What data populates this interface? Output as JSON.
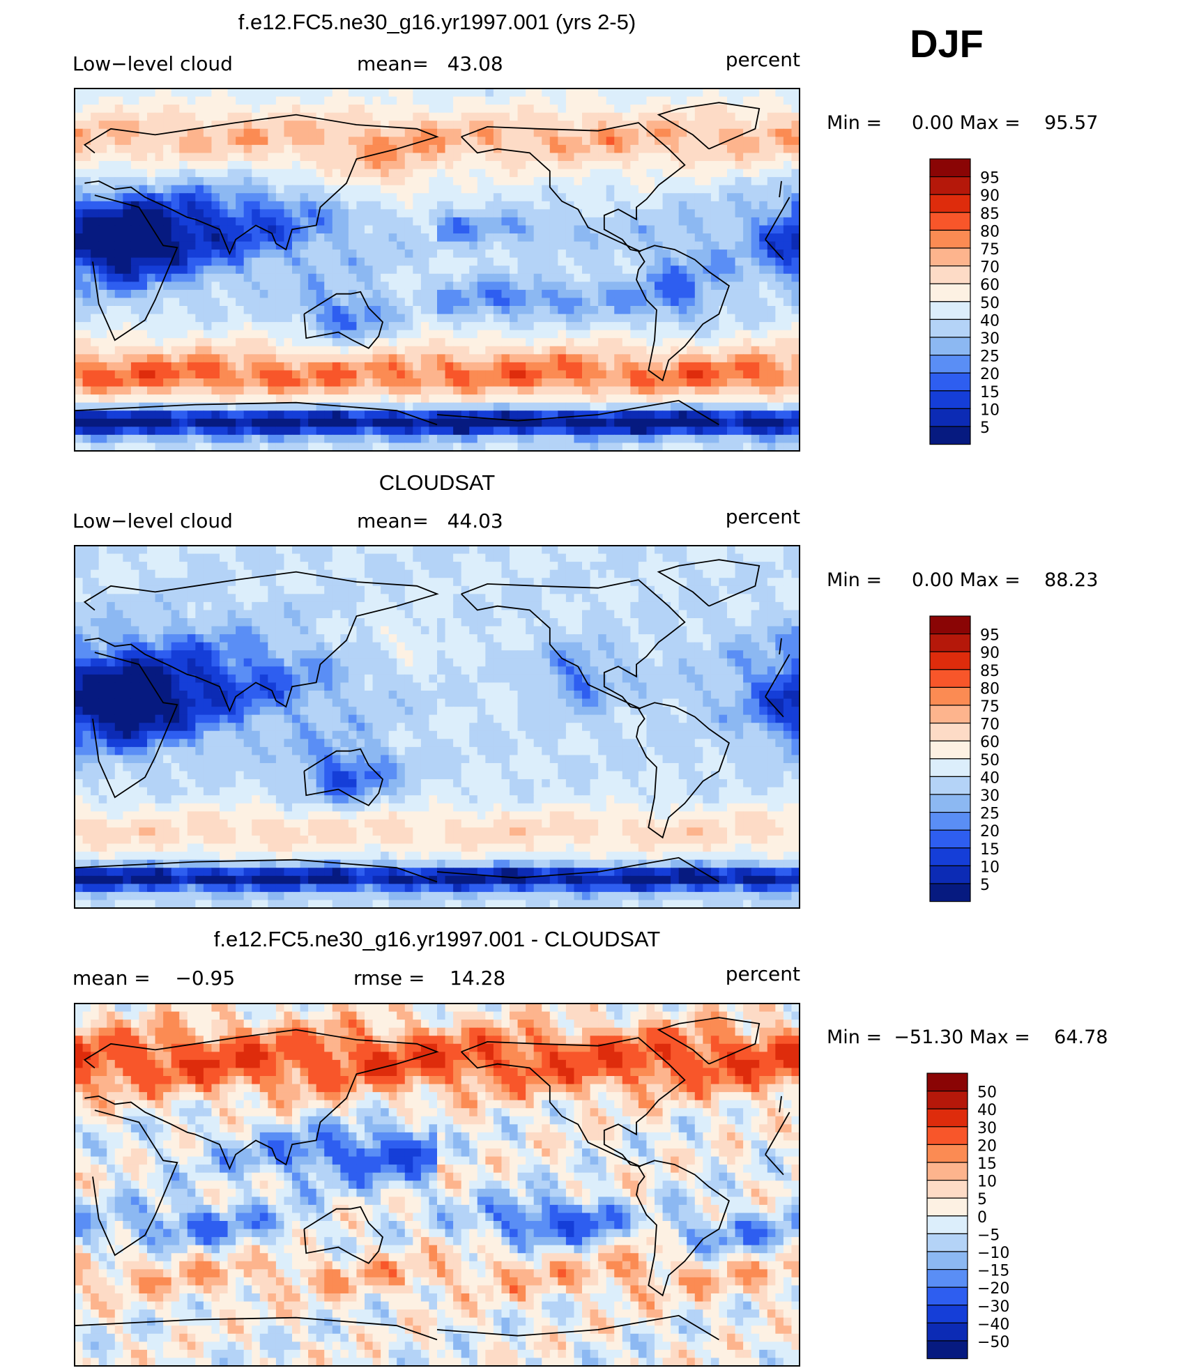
{
  "season": "DJF",
  "chart_data": [
    {
      "type": "heatmap",
      "title": "f.e12.FC5.ne30_g16.yr1997.001 (yrs 2-5)",
      "left_label": "Low−level cloud",
      "center_label": "mean=   43.08",
      "units": "percent",
      "variable": "Low-level cloud",
      "mean": 43.08,
      "minmax_text": "Min =     0.00 Max =    95.57",
      "min": 0.0,
      "max": 95.57,
      "colorbar": {
        "labels": [
          "95",
          "90",
          "85",
          "80",
          "75",
          "70",
          "60",
          "50",
          "40",
          "30",
          "25",
          "20",
          "15",
          "10",
          "5"
        ],
        "levels": [
          95,
          90,
          85,
          80,
          75,
          70,
          60,
          50,
          40,
          30,
          25,
          20,
          15,
          10,
          5
        ],
        "colors": [
          "#8a0505",
          "#b5180a",
          "#de2c0c",
          "#f8562a",
          "#fb8b53",
          "#fdb48d",
          "#fddbc6",
          "#fdf1e3",
          "#dceefb",
          "#b4d3f7",
          "#8cb8f2",
          "#5a8ef5",
          "#2e5ef0",
          "#153ed8",
          "#0c2bb5",
          "#061a80"
        ]
      },
      "field": "model_low_cloud"
    },
    {
      "type": "heatmap",
      "title": "CLOUDSAT",
      "left_label": "Low−level cloud",
      "center_label": "mean=   44.03",
      "units": "percent",
      "variable": "Low-level cloud",
      "mean": 44.03,
      "minmax_text": "Min =     0.00 Max =    88.23",
      "min": 0.0,
      "max": 88.23,
      "colorbar": {
        "labels": [
          "95",
          "90",
          "85",
          "80",
          "75",
          "70",
          "60",
          "50",
          "40",
          "30",
          "25",
          "20",
          "15",
          "10",
          "5"
        ],
        "levels": [
          95,
          90,
          85,
          80,
          75,
          70,
          60,
          50,
          40,
          30,
          25,
          20,
          15,
          10,
          5
        ],
        "colors": [
          "#8a0505",
          "#b5180a",
          "#de2c0c",
          "#f8562a",
          "#fb8b53",
          "#fdb48d",
          "#fddbc6",
          "#fdf1e3",
          "#dceefb",
          "#b4d3f7",
          "#8cb8f2",
          "#5a8ef5",
          "#2e5ef0",
          "#153ed8",
          "#0c2bb5",
          "#061a80"
        ]
      },
      "field": "obs_low_cloud"
    },
    {
      "type": "heatmap",
      "title": "f.e12.FC5.ne30_g16.yr1997.001 - CLOUDSAT",
      "left_label": "mean =    −0.95",
      "center_label": "rmse =    14.28",
      "units": "percent",
      "mean": -0.95,
      "rmse": 14.28,
      "minmax_text": "Min =  −51.30 Max =    64.78",
      "min": -51.3,
      "max": 64.78,
      "colorbar": {
        "labels": [
          "50",
          "40",
          "30",
          "20",
          "15",
          "10",
          "5",
          "0",
          "−5",
          "−10",
          "−15",
          "−20",
          "−30",
          "−40",
          "−50"
        ],
        "levels": [
          50,
          40,
          30,
          20,
          15,
          10,
          5,
          0,
          -5,
          -10,
          -15,
          -20,
          -30,
          -40,
          -50
        ],
        "colors": [
          "#8a0505",
          "#b5180a",
          "#de2c0c",
          "#f8562a",
          "#fb8b53",
          "#fdb48d",
          "#fddbc6",
          "#fdf1e3",
          "#dceefb",
          "#b4d3f7",
          "#8cb8f2",
          "#5a8ef5",
          "#2e5ef0",
          "#153ed8",
          "#0c2bb5",
          "#061a80"
        ]
      },
      "field": "difference"
    }
  ]
}
